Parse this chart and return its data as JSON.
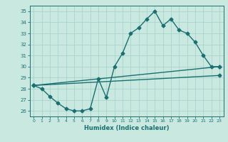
{
  "title": "",
  "xlabel": "Humidex (Indice chaleur)",
  "background_color": "#c8e8e0",
  "grid_color": "#a8d4cc",
  "line_color": "#1a7070",
  "xlim": [
    -0.5,
    23.5
  ],
  "ylim": [
    25.5,
    35.5
  ],
  "yticks": [
    26,
    27,
    28,
    29,
    30,
    31,
    32,
    33,
    34,
    35
  ],
  "xticks": [
    0,
    1,
    2,
    3,
    4,
    5,
    6,
    7,
    8,
    9,
    10,
    11,
    12,
    13,
    14,
    15,
    16,
    17,
    18,
    19,
    20,
    21,
    22,
    23
  ],
  "series1_x": [
    0,
    1,
    2,
    3,
    4,
    5,
    6,
    7,
    8,
    9,
    10,
    11,
    12,
    13,
    14,
    15,
    16,
    17,
    18,
    19,
    20,
    21,
    22,
    23
  ],
  "series1_y": [
    28.3,
    28.0,
    27.3,
    26.7,
    26.2,
    26.0,
    26.0,
    26.2,
    28.9,
    27.2,
    30.0,
    31.2,
    33.0,
    33.5,
    34.3,
    35.0,
    33.7,
    34.3,
    33.3,
    33.0,
    32.2,
    31.0,
    30.0,
    30.0
  ],
  "series2_x": [
    0,
    23
  ],
  "series2_y": [
    28.3,
    30.0
  ],
  "series3_x": [
    0,
    23
  ],
  "series3_y": [
    28.3,
    29.2
  ]
}
